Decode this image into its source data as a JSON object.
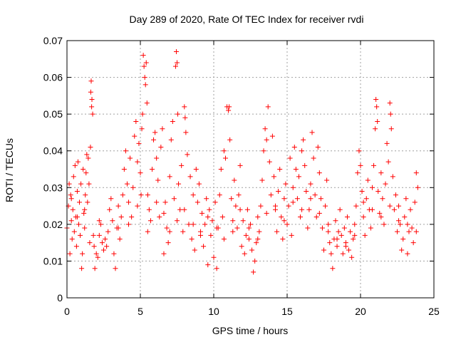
{
  "chart_data": {
    "type": "scatter",
    "title": "Day 289 of 2020, Rate Of TEC Index for receiver rvdi",
    "xlabel": "GPS time / hours",
    "ylabel": "ROTI / TECUs",
    "xlim": [
      0,
      25
    ],
    "ylim": [
      0,
      0.07
    ],
    "xticks": [
      0,
      5,
      10,
      15,
      20,
      25
    ],
    "yticks": [
      0,
      0.01,
      0.02,
      0.03,
      0.04,
      0.05,
      0.06,
      0.07
    ],
    "ytick_labels": [
      "0",
      "0.01",
      "0.02",
      "0.03",
      "0.04",
      "0.05",
      "0.06",
      "0.07"
    ],
    "grid": true,
    "marker": "+",
    "series": [
      {
        "color": "#ff0000",
        "points": [
          [
            0.0,
            0.019
          ],
          [
            0.1,
            0.025
          ],
          [
            0.15,
            0.031
          ],
          [
            0.2,
            0.012
          ],
          [
            0.25,
            0.028
          ],
          [
            0.3,
            0.021
          ],
          [
            0.35,
            0.016
          ],
          [
            0.4,
            0.024
          ],
          [
            0.45,
            0.033
          ],
          [
            0.5,
            0.018
          ],
          [
            0.55,
            0.036
          ],
          [
            0.6,
            0.022
          ],
          [
            0.65,
            0.014
          ],
          [
            0.7,
            0.029
          ],
          [
            0.75,
            0.037
          ],
          [
            0.8,
            0.02
          ],
          [
            0.85,
            0.026
          ],
          [
            0.9,
            0.017
          ],
          [
            0.95,
            0.031
          ],
          [
            1.0,
            0.008
          ],
          [
            1.05,
            0.012
          ],
          [
            1.1,
            0.035
          ],
          [
            1.15,
            0.023
          ],
          [
            1.2,
            0.019
          ],
          [
            1.25,
            0.028
          ],
          [
            1.3,
            0.034
          ],
          [
            1.35,
            0.039
          ],
          [
            1.4,
            0.026
          ],
          [
            1.45,
            0.038
          ],
          [
            1.5,
            0.031
          ],
          [
            1.55,
            0.015
          ],
          [
            1.6,
            0.041
          ],
          [
            1.62,
            0.056
          ],
          [
            1.65,
            0.059
          ],
          [
            1.68,
            0.052
          ],
          [
            1.7,
            0.054
          ],
          [
            1.75,
            0.05
          ],
          [
            1.8,
            0.017
          ],
          [
            1.85,
            0.014
          ],
          [
            1.9,
            0.008
          ],
          [
            2.0,
            0.012
          ],
          [
            2.1,
            0.011
          ],
          [
            2.2,
            0.017
          ],
          [
            2.3,
            0.02
          ],
          [
            2.4,
            0.015
          ],
          [
            2.5,
            0.013
          ],
          [
            2.6,
            0.016
          ],
          [
            2.7,
            0.014
          ],
          [
            2.8,
            0.018
          ],
          [
            2.9,
            0.024
          ],
          [
            3.0,
            0.027
          ],
          [
            3.1,
            0.021
          ],
          [
            3.2,
            0.012
          ],
          [
            3.3,
            0.008
          ],
          [
            3.4,
            0.019
          ],
          [
            3.5,
            0.025
          ],
          [
            3.6,
            0.016
          ],
          [
            3.7,
            0.022
          ],
          [
            3.8,
            0.028
          ],
          [
            3.9,
            0.035
          ],
          [
            4.0,
            0.04
          ],
          [
            4.1,
            0.031
          ],
          [
            4.2,
            0.026
          ],
          [
            4.3,
            0.038
          ],
          [
            4.4,
            0.022
          ],
          [
            4.5,
            0.03
          ],
          [
            4.6,
            0.044
          ],
          [
            4.7,
            0.048
          ],
          [
            4.8,
            0.037
          ],
          [
            4.9,
            0.042
          ],
          [
            5.0,
            0.034
          ],
          [
            5.05,
            0.028
          ],
          [
            5.1,
            0.046
          ],
          [
            5.15,
            0.05
          ],
          [
            5.2,
            0.066
          ],
          [
            5.25,
            0.063
          ],
          [
            5.3,
            0.06
          ],
          [
            5.35,
            0.058
          ],
          [
            5.4,
            0.064
          ],
          [
            5.45,
            0.053
          ],
          [
            5.5,
            0.018
          ],
          [
            5.6,
            0.024
          ],
          [
            5.7,
            0.021
          ],
          [
            5.8,
            0.035
          ],
          [
            5.9,
            0.043
          ],
          [
            6.0,
            0.045
          ],
          [
            6.1,
            0.038
          ],
          [
            6.2,
            0.032
          ],
          [
            6.3,
            0.022
          ],
          [
            6.4,
            0.041
          ],
          [
            6.5,
            0.046
          ],
          [
            6.6,
            0.012
          ],
          [
            6.7,
            0.026
          ],
          [
            6.8,
            0.019
          ],
          [
            6.9,
            0.015
          ],
          [
            7.0,
            0.033
          ],
          [
            7.1,
            0.043
          ],
          [
            7.2,
            0.048
          ],
          [
            7.3,
            0.027
          ],
          [
            7.4,
            0.063
          ],
          [
            7.45,
            0.067
          ],
          [
            7.5,
            0.064
          ],
          [
            7.55,
            0.05
          ],
          [
            7.6,
            0.031
          ],
          [
            7.7,
            0.024
          ],
          [
            7.8,
            0.036
          ],
          [
            7.9,
            0.018
          ],
          [
            8.0,
            0.052
          ],
          [
            8.05,
            0.049
          ],
          [
            8.1,
            0.045
          ],
          [
            8.2,
            0.039
          ],
          [
            8.3,
            0.02
          ],
          [
            8.4,
            0.033
          ],
          [
            8.5,
            0.016
          ],
          [
            8.6,
            0.028
          ],
          [
            8.7,
            0.013
          ],
          [
            8.8,
            0.035
          ],
          [
            8.9,
            0.026
          ],
          [
            9.0,
            0.031
          ],
          [
            9.1,
            0.018
          ],
          [
            9.2,
            0.023
          ],
          [
            9.3,
            0.014
          ],
          [
            9.4,
            0.02
          ],
          [
            9.5,
            0.027
          ],
          [
            9.6,
            0.009
          ],
          [
            9.7,
            0.024
          ],
          [
            9.8,
            0.017
          ],
          [
            9.9,
            0.021
          ],
          [
            10.0,
            0.011
          ],
          [
            10.1,
            0.026
          ],
          [
            10.2,
            0.008
          ],
          [
            10.3,
            0.019
          ],
          [
            10.4,
            0.028
          ],
          [
            10.5,
            0.035
          ],
          [
            10.6,
            0.022
          ],
          [
            10.7,
            0.04
          ],
          [
            10.8,
            0.038
          ],
          [
            10.9,
            0.052
          ],
          [
            11.0,
            0.051
          ],
          [
            11.05,
            0.052
          ],
          [
            11.1,
            0.043
          ],
          [
            11.2,
            0.027
          ],
          [
            11.3,
            0.018
          ],
          [
            11.4,
            0.032
          ],
          [
            11.5,
            0.025
          ],
          [
            11.6,
            0.019
          ],
          [
            11.7,
            0.028
          ],
          [
            11.8,
            0.036
          ],
          [
            11.9,
            0.014
          ],
          [
            12.0,
            0.021
          ],
          [
            12.1,
            0.012
          ],
          [
            12.2,
            0.017
          ],
          [
            12.3,
            0.024
          ],
          [
            12.4,
            0.016
          ],
          [
            12.5,
            0.02
          ],
          [
            12.6,
            0.013
          ],
          [
            12.7,
            0.007
          ],
          [
            12.8,
            0.01
          ],
          [
            12.9,
            0.015
          ],
          [
            13.0,
            0.022
          ],
          [
            13.1,
            0.018
          ],
          [
            13.2,
            0.025
          ],
          [
            13.3,
            0.032
          ],
          [
            13.4,
            0.04
          ],
          [
            13.5,
            0.046
          ],
          [
            13.6,
            0.043
          ],
          [
            13.7,
            0.052
          ],
          [
            13.8,
            0.037
          ],
          [
            13.9,
            0.028
          ],
          [
            14.0,
            0.044
          ],
          [
            14.1,
            0.033
          ],
          [
            14.2,
            0.024
          ],
          [
            14.3,
            0.018
          ],
          [
            14.4,
            0.029
          ],
          [
            14.5,
            0.035
          ],
          [
            14.6,
            0.022
          ],
          [
            14.7,
            0.016
          ],
          [
            14.8,
            0.027
          ],
          [
            14.9,
            0.031
          ],
          [
            15.0,
            0.02
          ],
          [
            15.1,
            0.025
          ],
          [
            15.2,
            0.038
          ],
          [
            15.3,
            0.017
          ],
          [
            15.4,
            0.03
          ],
          [
            15.5,
            0.041
          ],
          [
            15.6,
            0.035
          ],
          [
            15.7,
            0.027
          ],
          [
            15.8,
            0.033
          ],
          [
            15.9,
            0.022
          ],
          [
            16.0,
            0.04
          ],
          [
            16.1,
            0.043
          ],
          [
            16.2,
            0.036
          ],
          [
            16.3,
            0.029
          ],
          [
            16.4,
            0.019
          ],
          [
            16.5,
            0.024
          ],
          [
            16.6,
            0.031
          ],
          [
            16.7,
            0.045
          ],
          [
            16.8,
            0.038
          ],
          [
            16.9,
            0.028
          ],
          [
            17.0,
            0.022
          ],
          [
            17.1,
            0.041
          ],
          [
            17.2,
            0.034
          ],
          [
            17.3,
            0.027
          ],
          [
            17.4,
            0.019
          ],
          [
            17.5,
            0.013
          ],
          [
            17.6,
            0.025
          ],
          [
            17.7,
            0.032
          ],
          [
            17.8,
            0.02
          ],
          [
            17.9,
            0.015
          ],
          [
            18.0,
            0.012
          ],
          [
            18.1,
            0.008
          ],
          [
            18.2,
            0.016
          ],
          [
            18.3,
            0.021
          ],
          [
            18.4,
            0.014
          ],
          [
            18.5,
            0.018
          ],
          [
            18.6,
            0.024
          ],
          [
            18.7,
            0.017
          ],
          [
            18.8,
            0.012
          ],
          [
            18.9,
            0.019
          ],
          [
            19.0,
            0.015
          ],
          [
            19.1,
            0.022
          ],
          [
            19.2,
            0.013
          ],
          [
            19.3,
            0.018
          ],
          [
            19.4,
            0.011
          ],
          [
            19.5,
            0.016
          ],
          [
            19.6,
            0.02
          ],
          [
            19.7,
            0.025
          ],
          [
            19.8,
            0.034
          ],
          [
            19.9,
            0.04
          ],
          [
            20.0,
            0.036
          ],
          [
            20.1,
            0.029
          ],
          [
            20.2,
            0.022
          ],
          [
            20.3,
            0.017
          ],
          [
            20.4,
            0.027
          ],
          [
            20.5,
            0.032
          ],
          [
            20.6,
            0.024
          ],
          [
            20.7,
            0.019
          ],
          [
            20.8,
            0.03
          ],
          [
            20.9,
            0.036
          ],
          [
            21.0,
            0.046
          ],
          [
            21.05,
            0.054
          ],
          [
            21.1,
            0.052
          ],
          [
            21.15,
            0.048
          ],
          [
            21.2,
            0.029
          ],
          [
            21.3,
            0.023
          ],
          [
            21.4,
            0.034
          ],
          [
            21.5,
            0.027
          ],
          [
            21.6,
            0.02
          ],
          [
            21.7,
            0.031
          ],
          [
            21.8,
            0.042
          ],
          [
            21.9,
            0.037
          ],
          [
            22.0,
            0.053
          ],
          [
            22.05,
            0.05
          ],
          [
            22.1,
            0.046
          ],
          [
            22.2,
            0.033
          ],
          [
            22.3,
            0.024
          ],
          [
            22.4,
            0.028
          ],
          [
            22.5,
            0.018
          ],
          [
            22.6,
            0.025
          ],
          [
            22.7,
            0.02
          ],
          [
            22.8,
            0.013
          ],
          [
            22.9,
            0.016
          ],
          [
            23.0,
            0.022
          ],
          [
            23.1,
            0.027
          ],
          [
            23.2,
            0.012
          ],
          [
            23.3,
            0.018
          ],
          [
            23.4,
            0.024
          ],
          [
            23.5,
            0.019
          ],
          [
            23.6,
            0.015
          ],
          [
            23.7,
            0.026
          ],
          [
            23.8,
            0.034
          ],
          [
            23.9,
            0.03
          ],
          [
            0.3,
            0.027
          ],
          [
            0.7,
            0.022
          ],
          [
            1.2,
            0.024
          ],
          [
            2.2,
            0.021
          ],
          [
            3.5,
            0.019
          ],
          [
            4.2,
            0.02
          ],
          [
            4.8,
            0.025
          ],
          [
            5.5,
            0.028
          ],
          [
            6.1,
            0.026
          ],
          [
            6.6,
            0.023
          ],
          [
            7.0,
            0.018
          ],
          [
            7.5,
            0.021
          ],
          [
            8.0,
            0.024
          ],
          [
            8.6,
            0.02
          ],
          [
            9.1,
            0.017
          ],
          [
            9.6,
            0.022
          ],
          [
            10.2,
            0.019
          ],
          [
            10.7,
            0.016
          ],
          [
            11.3,
            0.021
          ],
          [
            11.8,
            0.024
          ],
          [
            12.4,
            0.019
          ],
          [
            13.0,
            0.016
          ],
          [
            13.6,
            0.023
          ],
          [
            14.2,
            0.025
          ],
          [
            14.8,
            0.021
          ],
          [
            15.4,
            0.026
          ],
          [
            16.0,
            0.024
          ],
          [
            16.6,
            0.027
          ],
          [
            17.2,
            0.023
          ],
          [
            17.8,
            0.018
          ],
          [
            18.4,
            0.016
          ],
          [
            19.0,
            0.014
          ],
          [
            19.6,
            0.017
          ],
          [
            20.2,
            0.026
          ],
          [
            20.8,
            0.024
          ],
          [
            21.4,
            0.022
          ],
          [
            22.0,
            0.025
          ],
          [
            22.6,
            0.021
          ],
          [
            23.2,
            0.02
          ],
          [
            23.8,
            0.018
          ]
        ]
      }
    ]
  }
}
